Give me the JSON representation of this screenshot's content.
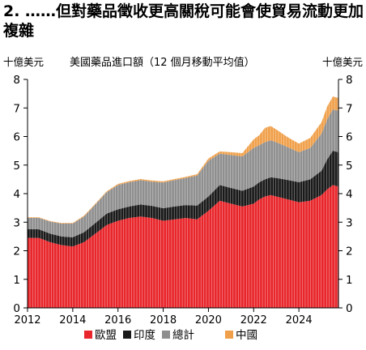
{
  "figure": {
    "title": "2. ……但對藥品徵收更高關稅可能會使貿易流動更加複雜",
    "subtitle": "美國藥品進口額（12 個月移動平均值）",
    "unit_left": "十億美元",
    "unit_right": "十億美元"
  },
  "chart_data": {
    "type": "area",
    "stacked": true,
    "title": "美國藥品進口額（12 個月移動平均值）",
    "ylabel": "十億美元",
    "ylim": [
      0,
      8
    ],
    "yticks": [
      "0",
      "1",
      "2",
      "3",
      "4",
      "5",
      "6",
      "7",
      "8"
    ],
    "xticks": [
      "2012",
      "2014",
      "2016",
      "2018",
      "2020",
      "2022",
      "2024"
    ],
    "x_range": [
      2012.0,
      2025.75
    ],
    "grid": false,
    "legend_position": "bottom",
    "colors": {
      "eu": "#e8262b",
      "india": "#1a1a1a",
      "other": "#8f8f8f",
      "china": "#f0a04b"
    },
    "legend": [
      {
        "key": "eu",
        "label": "歐盟"
      },
      {
        "key": "india",
        "label": "印度"
      },
      {
        "key": "other",
        "label": "總計"
      },
      {
        "key": "china",
        "label": "中國"
      }
    ],
    "x": [
      2012.0,
      2012.5,
      2013.0,
      2013.5,
      2014.0,
      2014.5,
      2015.0,
      2015.5,
      2016.0,
      2016.5,
      2017.0,
      2017.5,
      2018.0,
      2018.5,
      2019.0,
      2019.5,
      2020.0,
      2020.5,
      2021.0,
      2021.5,
      2022.0,
      2022.25,
      2022.5,
      2022.75,
      2023.0,
      2023.5,
      2024.0,
      2024.5,
      2025.0,
      2025.25,
      2025.5,
      2025.75
    ],
    "series": [
      {
        "key": "eu",
        "values": [
          2.45,
          2.45,
          2.3,
          2.2,
          2.15,
          2.3,
          2.6,
          2.9,
          3.05,
          3.15,
          3.2,
          3.15,
          3.05,
          3.1,
          3.15,
          3.1,
          3.4,
          3.75,
          3.65,
          3.55,
          3.65,
          3.8,
          3.9,
          3.95,
          3.9,
          3.8,
          3.7,
          3.75,
          3.95,
          4.15,
          4.3,
          4.25
        ]
      },
      {
        "key": "india",
        "values": [
          0.3,
          0.3,
          0.3,
          0.3,
          0.32,
          0.35,
          0.37,
          0.4,
          0.4,
          0.4,
          0.42,
          0.42,
          0.44,
          0.45,
          0.45,
          0.48,
          0.5,
          0.55,
          0.55,
          0.55,
          0.6,
          0.6,
          0.6,
          0.62,
          0.65,
          0.68,
          0.7,
          0.75,
          0.85,
          1.05,
          1.2,
          1.2
        ]
      },
      {
        "key": "other",
        "values": [
          0.4,
          0.4,
          0.42,
          0.45,
          0.48,
          0.55,
          0.65,
          0.75,
          0.85,
          0.85,
          0.85,
          0.85,
          0.9,
          0.92,
          0.95,
          1.05,
          1.25,
          1.1,
          1.15,
          1.2,
          1.35,
          1.3,
          1.3,
          1.3,
          1.25,
          1.15,
          1.05,
          1.1,
          1.3,
          1.4,
          1.45,
          1.45
        ]
      },
      {
        "key": "china",
        "values": [
          0.02,
          0.02,
          0.02,
          0.02,
          0.02,
          0.03,
          0.03,
          0.03,
          0.04,
          0.04,
          0.04,
          0.04,
          0.04,
          0.04,
          0.04,
          0.05,
          0.08,
          0.08,
          0.1,
          0.12,
          0.3,
          0.35,
          0.5,
          0.5,
          0.45,
          0.35,
          0.3,
          0.35,
          0.4,
          0.45,
          0.45,
          0.45
        ]
      }
    ]
  }
}
